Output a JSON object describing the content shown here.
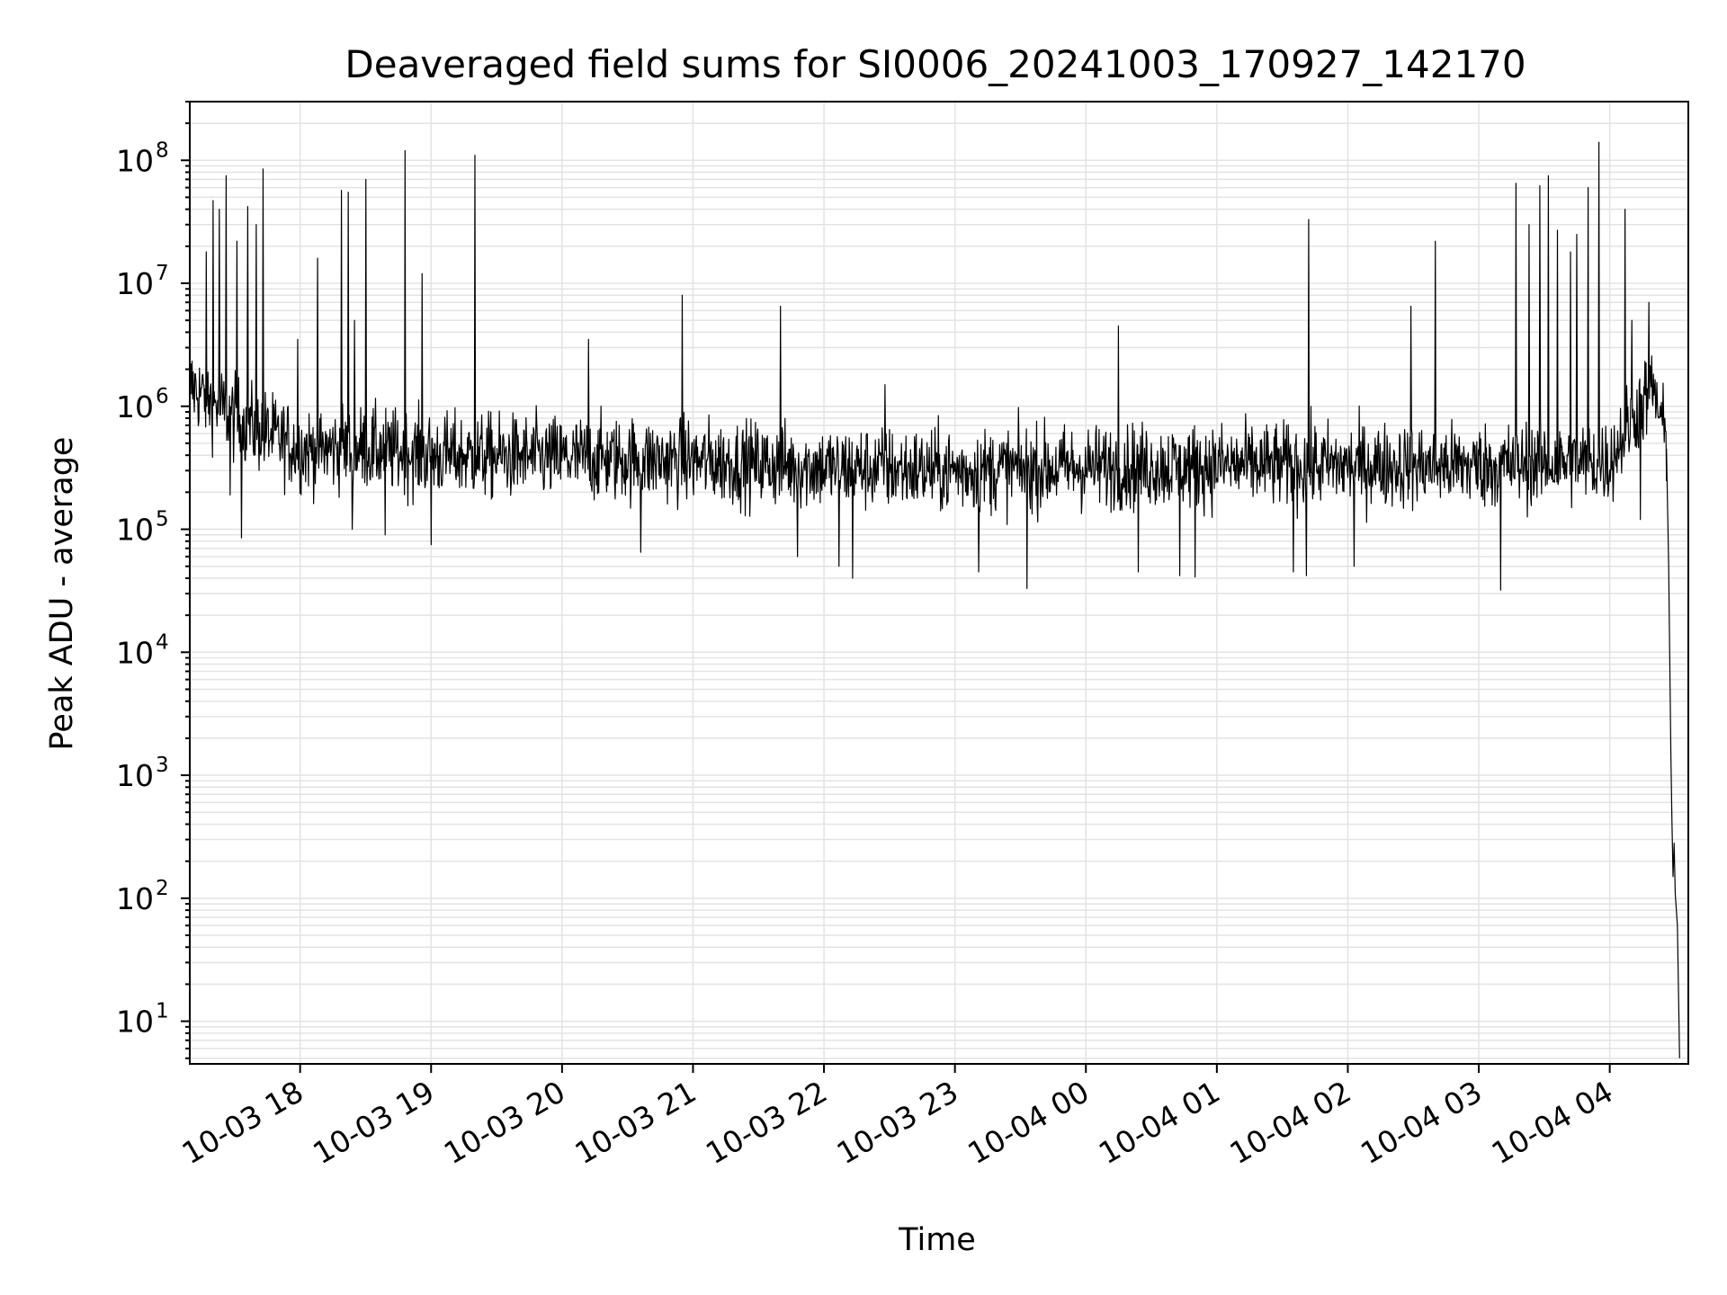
{
  "chart_data": {
    "type": "line",
    "title": "Deaveraged field sums for SI0006_20241003_170927_142170",
    "xlabel": "Time",
    "ylabel": "Peak ADU - average",
    "xscale": "time",
    "yscale": "log",
    "grid": true,
    "grid_minor": true,
    "legend": "none",
    "line_color": "#000000",
    "xlim": [
      "2024-10-03 17:09:27",
      "2024-10-04 04:36:00"
    ],
    "ylim": [
      4.5,
      300000000
    ],
    "x_ticks": [
      {
        "time": "2024-10-03 18:00",
        "label": "10-03 18"
      },
      {
        "time": "2024-10-03 19:00",
        "label": "10-03 19"
      },
      {
        "time": "2024-10-03 20:00",
        "label": "10-03 20"
      },
      {
        "time": "2024-10-03 21:00",
        "label": "10-03 21"
      },
      {
        "time": "2024-10-03 22:00",
        "label": "10-03 22"
      },
      {
        "time": "2024-10-03 23:00",
        "label": "10-03 23"
      },
      {
        "time": "2024-10-04 00:00",
        "label": "10-04 00"
      },
      {
        "time": "2024-10-04 01:00",
        "label": "10-04 01"
      },
      {
        "time": "2024-10-04 02:00",
        "label": "10-04 02"
      },
      {
        "time": "2024-10-04 03:00",
        "label": "10-04 03"
      },
      {
        "time": "2024-10-04 04:00",
        "label": "10-04 04"
      }
    ],
    "y_ticks": [
      {
        "value": 10,
        "base": "10",
        "exp": "1"
      },
      {
        "value": 100,
        "base": "10",
        "exp": "2"
      },
      {
        "value": 1000,
        "base": "10",
        "exp": "3"
      },
      {
        "value": 10000,
        "base": "10",
        "exp": "4"
      },
      {
        "value": 100000,
        "base": "10",
        "exp": "5"
      },
      {
        "value": 1000000,
        "base": "10",
        "exp": "6"
      },
      {
        "value": 10000000,
        "base": "10",
        "exp": "7"
      },
      {
        "value": 100000000,
        "base": "10",
        "exp": "8"
      }
    ],
    "baseline": [
      {
        "time": "2024-10-03 17:09",
        "value": 1500000
      },
      {
        "time": "2024-10-03 17:30",
        "value": 800000
      },
      {
        "time": "2024-10-03 18:00",
        "value": 450000
      },
      {
        "time": "2024-10-03 18:30",
        "value": 450000
      },
      {
        "time": "2024-10-03 19:00",
        "value": 400000
      },
      {
        "time": "2024-10-03 20:00",
        "value": 380000
      },
      {
        "time": "2024-10-03 21:00",
        "value": 360000
      },
      {
        "time": "2024-10-03 22:00",
        "value": 320000
      },
      {
        "time": "2024-10-03 23:00",
        "value": 300000
      },
      {
        "time": "2024-10-04 00:00",
        "value": 320000
      },
      {
        "time": "2024-10-04 01:00",
        "value": 330000
      },
      {
        "time": "2024-10-04 02:00",
        "value": 330000
      },
      {
        "time": "2024-10-04 03:00",
        "value": 330000
      },
      {
        "time": "2024-10-04 04:00",
        "value": 350000
      },
      {
        "time": "2024-10-04 04:10",
        "value": 800000
      },
      {
        "time": "2024-10-04 04:20",
        "value": 1400000
      },
      {
        "time": "2024-10-04 04:26",
        "value": 500000
      }
    ],
    "spikes": [
      {
        "time": "2024-10-03 17:17",
        "value": 18000000
      },
      {
        "time": "2024-10-03 17:20",
        "value": 47000000
      },
      {
        "time": "2024-10-03 17:23",
        "value": 40000000
      },
      {
        "time": "2024-10-03 17:26",
        "value": 75000000
      },
      {
        "time": "2024-10-03 17:31",
        "value": 22000000
      },
      {
        "time": "2024-10-03 17:36",
        "value": 42000000
      },
      {
        "time": "2024-10-03 17:40",
        "value": 30000000
      },
      {
        "time": "2024-10-03 17:43",
        "value": 85000000
      },
      {
        "time": "2024-10-03 17:59",
        "value": 3500000
      },
      {
        "time": "2024-10-03 18:08",
        "value": 16000000
      },
      {
        "time": "2024-10-03 18:19",
        "value": 57000000
      },
      {
        "time": "2024-10-03 18:22",
        "value": 55000000
      },
      {
        "time": "2024-10-03 18:25",
        "value": 5000000
      },
      {
        "time": "2024-10-03 18:30",
        "value": 70000000
      },
      {
        "time": "2024-10-03 18:39",
        "value": 1500000
      },
      {
        "time": "2024-10-03 18:48",
        "value": 120000000
      },
      {
        "time": "2024-10-03 18:56",
        "value": 12000000
      },
      {
        "time": "2024-10-03 19:20",
        "value": 110000000
      },
      {
        "time": "2024-10-03 20:12",
        "value": 3500000
      },
      {
        "time": "2024-10-03 20:55",
        "value": 8000000
      },
      {
        "time": "2024-10-03 21:40",
        "value": 6500000
      },
      {
        "time": "2024-10-03 22:28",
        "value": 1500000
      },
      {
        "time": "2024-10-04 00:15",
        "value": 4500000
      },
      {
        "time": "2024-10-04 01:42",
        "value": 33000000
      },
      {
        "time": "2024-10-04 02:29",
        "value": 6500000
      },
      {
        "time": "2024-10-04 02:40",
        "value": 22000000
      },
      {
        "time": "2024-10-04 03:17",
        "value": 65000000
      },
      {
        "time": "2024-10-04 03:23",
        "value": 30000000
      },
      {
        "time": "2024-10-04 03:28",
        "value": 62000000
      },
      {
        "time": "2024-10-04 03:32",
        "value": 75000000
      },
      {
        "time": "2024-10-04 03:36",
        "value": 27000000
      },
      {
        "time": "2024-10-04 03:42",
        "value": 18000000
      },
      {
        "time": "2024-10-04 03:45",
        "value": 25000000
      },
      {
        "time": "2024-10-04 03:50",
        "value": 60000000
      },
      {
        "time": "2024-10-04 03:55",
        "value": 140000000
      },
      {
        "time": "2024-10-04 04:07",
        "value": 40000000
      },
      {
        "time": "2024-10-04 04:10",
        "value": 5000000
      },
      {
        "time": "2024-10-04 04:18",
        "value": 7000000
      }
    ],
    "dips": [
      {
        "time": "2024-10-03 17:28",
        "value": 190000
      },
      {
        "time": "2024-10-03 17:33",
        "value": 85000
      },
      {
        "time": "2024-10-03 18:24",
        "value": 100000
      },
      {
        "time": "2024-10-03 18:39",
        "value": 90000
      },
      {
        "time": "2024-10-03 19:00",
        "value": 75000
      },
      {
        "time": "2024-10-03 20:36",
        "value": 65000
      },
      {
        "time": "2024-10-03 21:48",
        "value": 60000
      },
      {
        "time": "2024-10-03 22:07",
        "value": 50000
      },
      {
        "time": "2024-10-03 22:13",
        "value": 40000
      },
      {
        "time": "2024-10-03 23:11",
        "value": 45000
      },
      {
        "time": "2024-10-03 23:33",
        "value": 33000
      },
      {
        "time": "2024-10-04 00:24",
        "value": 45000
      },
      {
        "time": "2024-10-04 00:43",
        "value": 42000
      },
      {
        "time": "2024-10-04 00:50",
        "value": 41000
      },
      {
        "time": "2024-10-04 01:35",
        "value": 45000
      },
      {
        "time": "2024-10-04 01:41",
        "value": 42000
      },
      {
        "time": "2024-10-04 02:03",
        "value": 50000
      },
      {
        "time": "2024-10-04 03:10",
        "value": 32000
      },
      {
        "time": "2024-10-04 04:14",
        "value": 120000
      }
    ],
    "tail": [
      {
        "time": "2024-10-04 04:26",
        "value": 450000
      },
      {
        "time": "2024-10-04 04:27",
        "value": 50000
      },
      {
        "time": "2024-10-04 04:28",
        "value": 1500
      },
      {
        "time": "2024-10-04 04:28:30",
        "value": 420
      },
      {
        "time": "2024-10-04 04:29",
        "value": 150
      },
      {
        "time": "2024-10-04 04:29:30",
        "value": 280
      },
      {
        "time": "2024-10-04 04:30",
        "value": 110
      },
      {
        "time": "2024-10-04 04:31",
        "value": 60
      },
      {
        "time": "2024-10-04 04:32",
        "value": 5
      }
    ]
  }
}
